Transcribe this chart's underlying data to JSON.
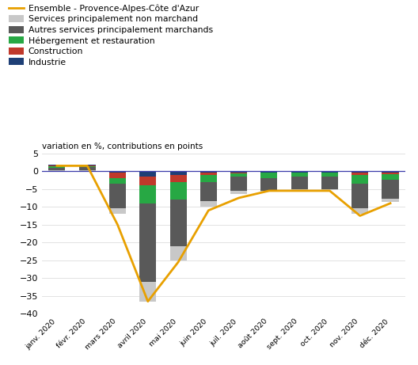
{
  "months": [
    "janv. 2020",
    "févr. 2020",
    "mars 2020",
    "avril 2020",
    "mai 2020",
    "juin 2020",
    "juil. 2020",
    "août 2020",
    "sept. 2020",
    "oct. 2020",
    "nov. 2020",
    "déc. 2020"
  ],
  "industrie": [
    0.2,
    0.2,
    -0.5,
    -1.5,
    -1.0,
    -0.5,
    -0.3,
    -0.3,
    -0.3,
    -0.3,
    -0.5,
    -0.5
  ],
  "construction": [
    0.2,
    0.2,
    -1.5,
    -2.5,
    -2.0,
    -0.5,
    -0.3,
    -0.2,
    -0.2,
    -0.2,
    -0.5,
    -0.3
  ],
  "hebergement": [
    0.3,
    0.3,
    -1.5,
    -5.0,
    -5.0,
    -2.0,
    -1.0,
    -1.5,
    -1.0,
    -1.0,
    -2.5,
    -1.5
  ],
  "autres_services": [
    0.7,
    0.8,
    -7.0,
    -22.0,
    -13.0,
    -5.5,
    -4.0,
    -3.5,
    -3.5,
    -3.5,
    -7.0,
    -5.5
  ],
  "services_non_marchand": [
    0.3,
    0.3,
    -1.5,
    -5.5,
    -4.0,
    -1.5,
    -0.7,
    -0.3,
    -0.3,
    -0.3,
    -1.5,
    -0.8
  ],
  "ensemble_line": [
    1.5,
    1.5,
    -15.0,
    -36.5,
    -25.5,
    -11.0,
    -7.5,
    -5.5,
    -5.5,
    -5.5,
    -12.5,
    -9.0
  ],
  "colors": {
    "industrie": "#1e3f76",
    "construction": "#c0392b",
    "hebergement": "#27a844",
    "autres_services": "#595959",
    "services_non_marchand": "#c8c8c8"
  },
  "line_color": "#e8a000",
  "zero_line_color": "#3a3aaa",
  "ylim": [
    -40,
    5
  ],
  "yticks": [
    5,
    0,
    -5,
    -10,
    -15,
    -20,
    -25,
    -30,
    -35,
    -40
  ],
  "ylabel": "variation en %, contributions en points",
  "legend_labels": [
    "Ensemble - Provence-Alpes-Côte d'Azur",
    "Services principalement non marchand",
    "Autres services principalement marchands",
    "Hébergement et restauration",
    "Construction",
    "Industrie"
  ]
}
